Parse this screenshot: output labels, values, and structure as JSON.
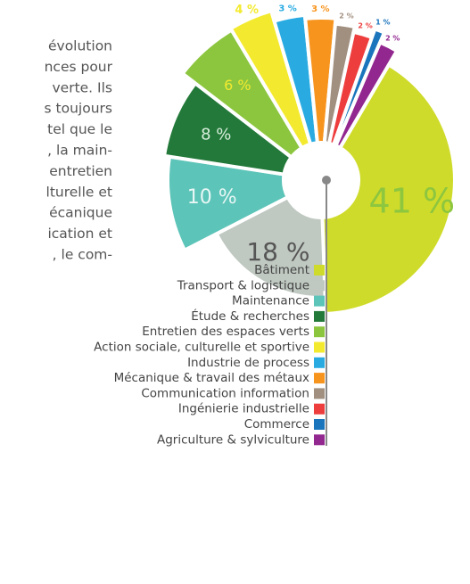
{
  "paragraph": {
    "lines": [
      "évolution",
      "nces pour",
      "verte. Ils",
      "s toujours",
      "tel que le",
      ", la main-",
      "entretien",
      "lturelle et",
      "écanique",
      "ication et",
      ", le com-"
    ]
  },
  "chart_data": {
    "type": "pie",
    "categories": [
      "Bâtiment",
      "Transport & logistique",
      "Maintenance",
      "Étude & recherches",
      "Entretien des espaces verts",
      "Action sociale, culturelle et sportive",
      "Industrie de process",
      "Mécanique & travail des métaux",
      "Communication information",
      "Ingénierie industrielle",
      "Commerce",
      "Agriculture & sylviculture"
    ],
    "values": [
      41,
      18,
      10,
      8,
      6,
      4,
      3,
      3,
      2,
      2,
      1,
      2
    ],
    "value_labels": [
      "41 %",
      "18 %",
      "10 %",
      "8 %",
      "6 %",
      "4 %",
      "3 %",
      "3 %",
      "2 %",
      "2 %",
      "1 %",
      "2 %"
    ],
    "colors": [
      "#cfdb2a",
      "#bfc8c1",
      "#5cc4b8",
      "#23793a",
      "#8cc63f",
      "#f3ea2f",
      "#29abe2",
      "#f7941d",
      "#a18f80",
      "#ee3d3d",
      "#1b75bc",
      "#92278f"
    ]
  }
}
